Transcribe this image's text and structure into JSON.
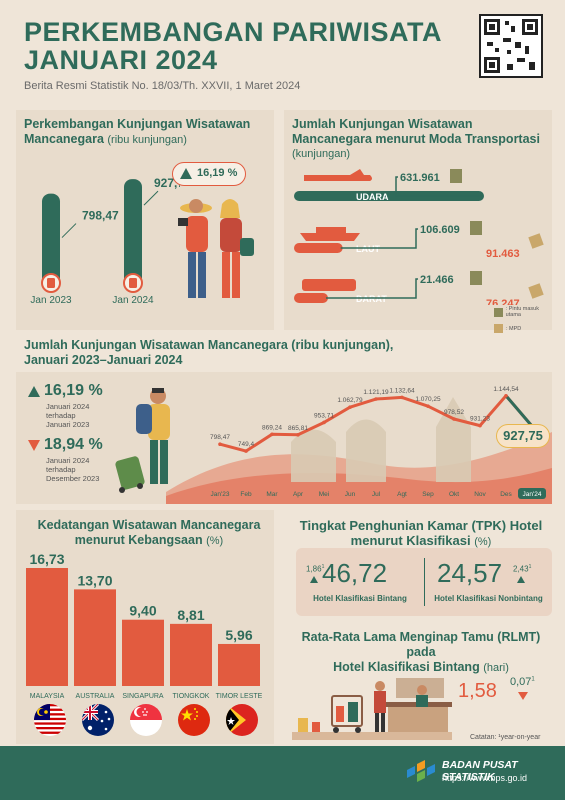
{
  "header": {
    "title_line1": "PERKEMBANGAN PARIWISATA",
    "title_line2": "JANUARI 2024",
    "subtitle": "Berita Resmi Statistik No. 18/03/Th. XXVII, 1 Maret 2024"
  },
  "arrivals": {
    "title_line1": "Perkembangan Kunjungan Wisatawan",
    "title_line2": "Mancanegara",
    "unit": "(ribu kunjungan)",
    "growth": "16,19 %",
    "bars": [
      {
        "label": "Jan 2023",
        "value_text": "798,47",
        "value": 798.47
      },
      {
        "label": "Jan 2024",
        "value_text": "927,75",
        "value": 927.75
      }
    ]
  },
  "transport": {
    "title_line1": "Jumlah Kunjungan Wisatawan",
    "title_line2": "Mancanegara menurut Moda Transportasi",
    "unit": "(kunjungan)",
    "modes": [
      {
        "name": "UDARA",
        "main": "631.961",
        "main_value": 631961,
        "pmpd": "",
        "pmpd_value": 0
      },
      {
        "name": "LAUT",
        "main": "106.609",
        "main_value": 106609,
        "pmpd": "91.463",
        "pmpd_value": 91463
      },
      {
        "name": "DARAT",
        "main": "21.466",
        "main_value": 21466,
        "pmpd": "76.247",
        "pmpd_value": 76247
      }
    ],
    "legend": [
      {
        "label": ": Pintu masuk utama"
      },
      {
        "label": ": MPD"
      }
    ]
  },
  "trend": {
    "title_line1": "Jumlah Kunjungan Wisatawan Mancanegara (ribu kunjungan),",
    "title_line2": "Januari 2023–Januari 2024",
    "up": {
      "value": "16,19 %",
      "line1": "Januari 2024",
      "line2": "terhadap",
      "line3": "Januari 2023"
    },
    "down": {
      "value": "18,94 %",
      "line1": "Januari 2024",
      "line2": "terhadap",
      "line3": "Desember 2023"
    },
    "highlight": "927,75"
  },
  "chart_data": {
    "type": "line",
    "categories": [
      "Jan'23",
      "Feb",
      "Mar",
      "Apr",
      "Mei",
      "Jun",
      "Jul",
      "Agt",
      "Sep",
      "Okt",
      "Nov",
      "Des",
      "Jan'24"
    ],
    "labels": [
      "798,47",
      "749,4",
      "869,24",
      "865,81",
      "953,71",
      "1.062,79",
      "1.121,19",
      "1.132,64",
      "1.070,25",
      "978,52",
      "931,23",
      "1.144,54",
      "927,75"
    ],
    "values": [
      798.47,
      749.4,
      869.24,
      865.81,
      953.71,
      1062.79,
      1121.19,
      1132.64,
      1070.25,
      978.52,
      931.23,
      1144.54,
      927.75
    ],
    "ylim": [
      700,
      1200
    ]
  },
  "nationality": {
    "title_line1": "Kedatangan Wisatawan Mancanegara",
    "title_line2": "menurut Kebangsaan",
    "unit": "(%)",
    "items": [
      {
        "country": "MALAYSIA",
        "value_text": "16,73",
        "value": 16.73
      },
      {
        "country": "AUSTRALIA",
        "value_text": "13,70",
        "value": 13.7
      },
      {
        "country": "SINGAPURA",
        "value_text": "9,40",
        "value": 9.4
      },
      {
        "country": "TIONGKOK",
        "value_text": "8,81",
        "value": 8.81
      },
      {
        "country": "TIMOR LESTE",
        "value_text": "5,96",
        "value": 5.96
      }
    ]
  },
  "tpk": {
    "title_line1": "Tingkat Penghunian Kamar (TPK) Hotel",
    "title_line2": "menurut Klasifikasi",
    "unit": "(%)",
    "bintang": {
      "value": "46,72",
      "change": "1,86",
      "mark": "1",
      "label": "Hotel Klasifikasi Bintang"
    },
    "nonbintang": {
      "value": "24,57",
      "change": "2,43",
      "mark": "1",
      "label": "Hotel Klasifikasi Nonbintang"
    }
  },
  "rlmt": {
    "title_line1": "Rata-Rata Lama Menginap Tamu (RLMT) pada",
    "title_line2": "Hotel Klasifikasi Bintang",
    "unit": "(hari)",
    "value": "1,58",
    "change": "0,07",
    "mark": "1"
  },
  "note": "Catatan: ¹year-on-year",
  "footer": {
    "org": "BADAN PUSAT STATISTIK",
    "url": "https://www.bps.go.id"
  },
  "colors": {
    "green": "#2f6b5a",
    "red": "#e25b3f",
    "bg": "#efe5d8"
  }
}
